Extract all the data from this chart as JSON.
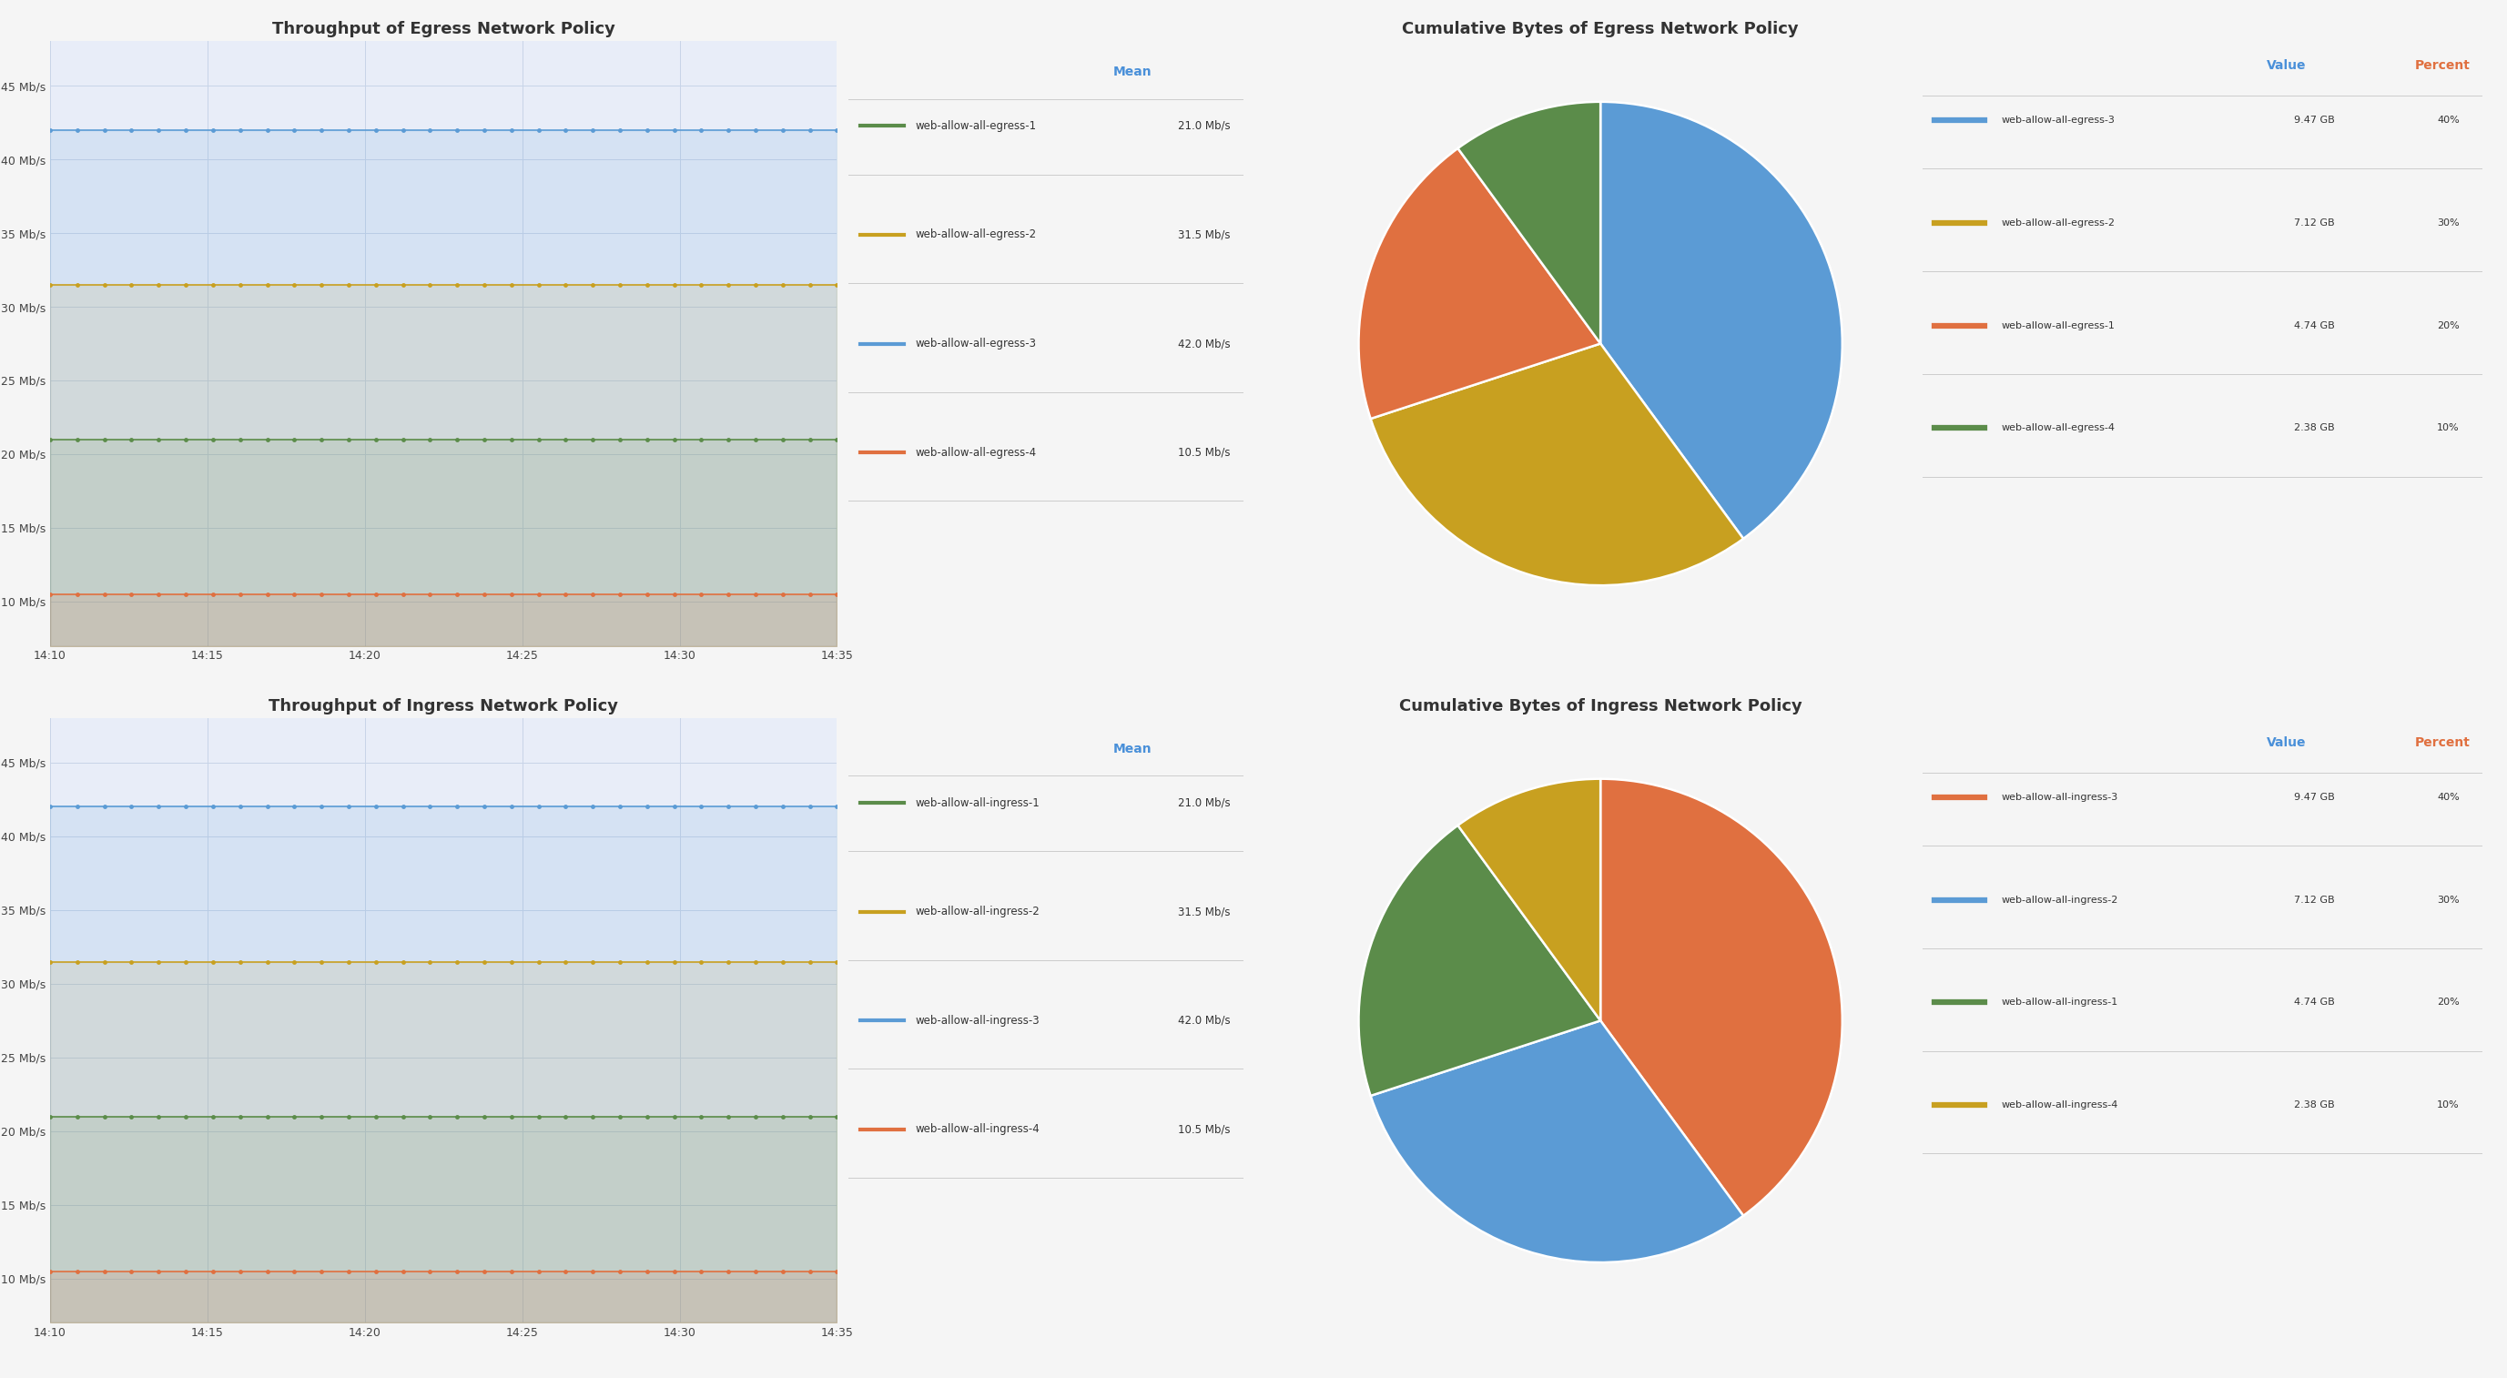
{
  "title_egress_line": "Throughput of Egress Network Policy",
  "title_ingress_line": "Throughput of Ingress Network Policy",
  "title_egress_pie": "Cumulative Bytes of Egress Network Policy",
  "title_ingress_pie": "Cumulative Bytes of Ingress Network Policy",
  "time_labels": [
    "14:10",
    "14:15",
    "14:20",
    "14:25",
    "14:30",
    "14:35"
  ],
  "n_points": 30,
  "egress_lines": [
    {
      "label": "web-allow-all-egress-1",
      "value": "21.0 Mb/s",
      "color": "#5b8c4a",
      "y": 21.0
    },
    {
      "label": "web-allow-all-egress-2",
      "value": "31.5 Mb/s",
      "color": "#c8a020",
      "y": 31.5
    },
    {
      "label": "web-allow-all-egress-3",
      "value": "42.0 Mb/s",
      "color": "#5b9bd5",
      "y": 42.0
    },
    {
      "label": "web-allow-all-egress-4",
      "value": "10.5 Mb/s",
      "color": "#e07040",
      "y": 10.5
    }
  ],
  "ingress_lines": [
    {
      "label": "web-allow-all-ingress-1",
      "value": "21.0 Mb/s",
      "color": "#5b8c4a",
      "y": 21.0
    },
    {
      "label": "web-allow-all-ingress-2",
      "value": "31.5 Mb/s",
      "color": "#c8a020",
      "y": 31.5
    },
    {
      "label": "web-allow-all-ingress-3",
      "value": "42.0 Mb/s",
      "color": "#5b9bd5",
      "y": 42.0
    },
    {
      "label": "web-allow-all-ingress-4",
      "value": "10.5 Mb/s",
      "color": "#e07040",
      "y": 10.5
    }
  ],
  "ylim_line": [
    7,
    48
  ],
  "yticks_line": [
    10,
    15,
    20,
    25,
    30,
    35,
    40,
    45
  ],
  "mean_label": "Mean",
  "mean_color": "#4a90d9",
  "egress_pie": {
    "labels": [
      "web-allow-all-egress-3",
      "web-allow-all-egress-2",
      "web-allow-all-egress-1",
      "web-allow-all-egress-4"
    ],
    "values": [
      9.47,
      7.12,
      4.74,
      2.38
    ],
    "percents": [
      "40%",
      "30%",
      "20%",
      "10%"
    ],
    "colors": [
      "#5b9bd5",
      "#c8a020",
      "#e07040",
      "#5b8c4a"
    ],
    "gb_values": [
      "9.47 GB",
      "7.12 GB",
      "4.74 GB",
      "2.38 GB"
    ]
  },
  "ingress_pie": {
    "labels": [
      "web-allow-all-ingress-3",
      "web-allow-all-ingress-2",
      "web-allow-all-ingress-1",
      "web-allow-all-ingress-4"
    ],
    "values": [
      9.47,
      7.12,
      4.74,
      2.38
    ],
    "percents": [
      "40%",
      "30%",
      "20%",
      "10%"
    ],
    "colors": [
      "#e07040",
      "#5b9bd5",
      "#5b8c4a",
      "#c8a020"
    ],
    "gb_values": [
      "9.47 GB",
      "7.12 GB",
      "4.74 GB",
      "2.38 GB"
    ]
  },
  "bg_color": "#f5f5f5",
  "chart_bg_color": "#e8edf8",
  "grid_color": "#c8d4e8",
  "title_fontsize": 13,
  "tick_fontsize": 9,
  "legend_fontsize": 9,
  "value_header_color": "#4a90d9",
  "percent_header_color": "#e07040",
  "sep_color": "#cccccc"
}
